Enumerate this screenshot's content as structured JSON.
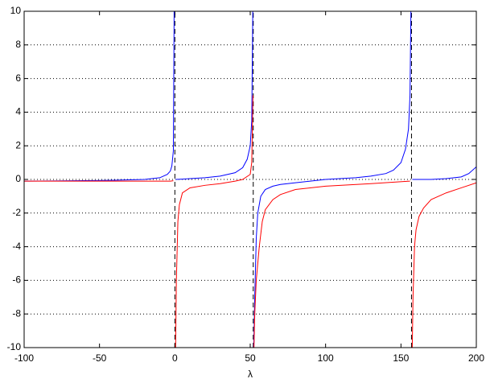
{
  "chart_data": {
    "type": "line",
    "xlabel": "λ",
    "xlim": [
      -100,
      200
    ],
    "xticks": [
      -100,
      -50,
      0,
      50,
      100,
      150,
      200
    ],
    "ylim": [
      -10,
      10
    ],
    "yticks": [
      -10,
      -8,
      -6,
      -4,
      -2,
      0,
      2,
      4,
      6,
      8,
      10
    ],
    "grid": "y",
    "asymptotes": [
      0,
      52,
      157
    ],
    "series": [
      {
        "color": "#0000ff",
        "x": [
          -100,
          -80,
          -60,
          -40,
          -20,
          -10,
          -5,
          -3,
          -2,
          -1,
          -0.5,
          null,
          0.5,
          5,
          10,
          20,
          30,
          40,
          45,
          48,
          50,
          51,
          51.7,
          null,
          52.3,
          53,
          54,
          55,
          57,
          60,
          65,
          70,
          80,
          100,
          120,
          130,
          140,
          145,
          150,
          153,
          155,
          156,
          156.6,
          null,
          157.5,
          160,
          170,
          180,
          190,
          195,
          200
        ],
        "values": [
          -0.1,
          -0.09,
          -0.07,
          -0.05,
          0,
          0.1,
          0.3,
          0.5,
          0.8,
          1.7,
          10,
          null,
          0,
          0.02,
          0.05,
          0.1,
          0.2,
          0.4,
          0.7,
          1.2,
          2,
          3.5,
          10,
          null,
          -10,
          -7,
          -3.5,
          -2,
          -1,
          -0.6,
          -0.4,
          -0.3,
          -0.2,
          0,
          0.1,
          0.2,
          0.35,
          0.55,
          1,
          1.8,
          3,
          5,
          10,
          null,
          0,
          0,
          0,
          0.05,
          0.15,
          0.35,
          0.75
        ]
      },
      {
        "color": "#ff0000",
        "x": [
          -100,
          -50,
          -10,
          -3,
          -1,
          null,
          0.5,
          1,
          2,
          3,
          5,
          10,
          20,
          30,
          40,
          45,
          50,
          51,
          51.8,
          null,
          52.5,
          53,
          54,
          56,
          58,
          60,
          65,
          70,
          80,
          100,
          130,
          156,
          null,
          157.5,
          158,
          159,
          160,
          162,
          165,
          170,
          180,
          190,
          200
        ],
        "values": [
          -0.1,
          -0.1,
          -0.1,
          -0.1,
          -0.08,
          null,
          -10,
          -6,
          -2.5,
          -1.5,
          -0.8,
          -0.5,
          -0.35,
          -0.25,
          -0.1,
          0,
          0.3,
          1,
          5,
          null,
          -10,
          -8,
          -6,
          -4,
          -2.5,
          -1.8,
          -1.2,
          -0.9,
          -0.6,
          -0.4,
          -0.25,
          -0.1,
          null,
          -10,
          -7,
          -4,
          -3,
          -2.2,
          -1.7,
          -1.2,
          -0.8,
          -0.5,
          -0.2
        ]
      }
    ]
  }
}
